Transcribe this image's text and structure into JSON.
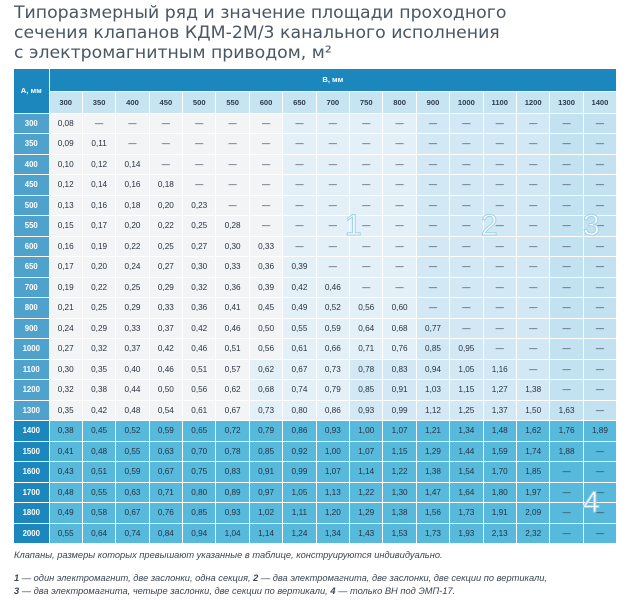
{
  "title_lines": [
    "Типоразмерный ряд и значение площади проходного",
    "сечения клапанов КДМ-2М/3 канального исполнения",
    "с электромагнитным приводом, м²"
  ],
  "table": {
    "corner_label": "А, мм",
    "columns_label": "В, мм",
    "columns": [
      "300",
      "350",
      "400",
      "450",
      "500",
      "550",
      "600",
      "650",
      "700",
      "750",
      "800",
      "900",
      "1000",
      "1100",
      "1200",
      "1300",
      "1400"
    ],
    "rows": [
      {
        "a": "300",
        "cells": [
          "0,08",
          "—",
          "—",
          "—",
          "—",
          "—",
          "—",
          "—",
          "—",
          "—",
          "—",
          "—",
          "—",
          "—",
          "—",
          "—",
          "—"
        ]
      },
      {
        "a": "350",
        "cells": [
          "0,09",
          "0,11",
          "—",
          "—",
          "—",
          "—",
          "—",
          "—",
          "—",
          "—",
          "—",
          "—",
          "—",
          "—",
          "—",
          "—",
          "—"
        ]
      },
      {
        "a": "400",
        "cells": [
          "0,10",
          "0,12",
          "0,14",
          "—",
          "—",
          "—",
          "—",
          "—",
          "—",
          "—",
          "—",
          "—",
          "—",
          "—",
          "—",
          "—",
          "—"
        ]
      },
      {
        "a": "450",
        "cells": [
          "0,12",
          "0,14",
          "0,16",
          "0,18",
          "—",
          "—",
          "—",
          "—",
          "—",
          "—",
          "—",
          "—",
          "—",
          "—",
          "—",
          "—",
          "—"
        ]
      },
      {
        "a": "500",
        "cells": [
          "0,13",
          "0,16",
          "0,18",
          "0,20",
          "0,23",
          "—",
          "—",
          "—",
          "—",
          "—",
          "—",
          "—",
          "—",
          "—",
          "—",
          "—",
          "—"
        ]
      },
      {
        "a": "550",
        "cells": [
          "0,15",
          "0,17",
          "0,20",
          "0,22",
          "0,25",
          "0,28",
          "—",
          "—",
          "—",
          "—",
          "—",
          "—",
          "—",
          "—",
          "—",
          "—",
          "—"
        ]
      },
      {
        "a": "600",
        "cells": [
          "0,16",
          "0,19",
          "0,22",
          "0,25",
          "0,27",
          "0,30",
          "0,33",
          "—",
          "—",
          "—",
          "—",
          "—",
          "—",
          "—",
          "—",
          "—",
          "—"
        ]
      },
      {
        "a": "650",
        "cells": [
          "0,17",
          "0,20",
          "0,24",
          "0,27",
          "0,30",
          "0,33",
          "0,36",
          "0,39",
          "—",
          "—",
          "—",
          "—",
          "—",
          "—",
          "—",
          "—",
          "—"
        ]
      },
      {
        "a": "700",
        "cells": [
          "0,19",
          "0,22",
          "0,25",
          "0,29",
          "0,32",
          "0,36",
          "0,39",
          "0,42",
          "0,46",
          "—",
          "—",
          "—",
          "—",
          "—",
          "—",
          "—",
          "—"
        ]
      },
      {
        "a": "800",
        "cells": [
          "0,21",
          "0,25",
          "0,29",
          "0,33",
          "0,36",
          "0,41",
          "0,45",
          "0,49",
          "0,52",
          "0,56",
          "0,60",
          "—",
          "—",
          "—",
          "—",
          "—",
          "—"
        ]
      },
      {
        "a": "900",
        "cells": [
          "0,24",
          "0,29",
          "0,33",
          "0,37",
          "0,42",
          "0,46",
          "0,50",
          "0,55",
          "0,59",
          "0,64",
          "0,68",
          "0,77",
          "—",
          "—",
          "—",
          "—",
          "—"
        ]
      },
      {
        "a": "1000",
        "cells": [
          "0,27",
          "0,32",
          "0,37",
          "0,42",
          "0,46",
          "0,51",
          "0,56",
          "0,61",
          "0,66",
          "0,71",
          "0,76",
          "0,85",
          "0,95",
          "—",
          "—",
          "—",
          "—"
        ]
      },
      {
        "a": "1100",
        "cells": [
          "0,30",
          "0,35",
          "0,40",
          "0,46",
          "0,51",
          "0,57",
          "0,62",
          "0,67",
          "0,73",
          "0,78",
          "0,83",
          "0,94",
          "1,05",
          "1,16",
          "—",
          "—",
          "—"
        ]
      },
      {
        "a": "1200",
        "cells": [
          "0,32",
          "0,38",
          "0,44",
          "0,50",
          "0,56",
          "0,62",
          "0,68",
          "0,74",
          "0,79",
          "0,85",
          "0,91",
          "1,03",
          "1,15",
          "1,27",
          "1,38",
          "—",
          "—"
        ]
      },
      {
        "a": "1300",
        "cells": [
          "0,35",
          "0,42",
          "0,48",
          "0,54",
          "0,61",
          "0,67",
          "0,73",
          "0,80",
          "0,86",
          "0,93",
          "0,99",
          "1,12",
          "1,25",
          "1,37",
          "1,50",
          "1,63",
          "—"
        ]
      },
      {
        "a": "1400",
        "cells": [
          "0,38",
          "0,45",
          "0,52",
          "0,59",
          "0,65",
          "0,72",
          "0,79",
          "0,86",
          "0,93",
          "1,00",
          "1,07",
          "1,21",
          "1,34",
          "1,48",
          "1,62",
          "1,76",
          "1,89"
        ]
      },
      {
        "a": "1500",
        "cells": [
          "0,41",
          "0,48",
          "0,55",
          "0,63",
          "0,70",
          "0,78",
          "0,85",
          "0,92",
          "1,00",
          "1,07",
          "1,15",
          "1,29",
          "1,44",
          "1,59",
          "1,74",
          "1,88",
          "—"
        ]
      },
      {
        "a": "1600",
        "cells": [
          "0,43",
          "0,51",
          "0,59",
          "0,67",
          "0,75",
          "0,83",
          "0,91",
          "0,99",
          "1,07",
          "1,14",
          "1,22",
          "1,38",
          "1,54",
          "1,70",
          "1,85",
          "—",
          "—"
        ]
      },
      {
        "a": "1700",
        "cells": [
          "0,48",
          "0,55",
          "0,63",
          "0,71",
          "0,80",
          "0,89",
          "0,97",
          "1,05",
          "1,13",
          "1,22",
          "1,30",
          "1,47",
          "1,64",
          "1,80",
          "1,97",
          "—",
          "—"
        ]
      },
      {
        "a": "1800",
        "cells": [
          "0,49",
          "0,58",
          "0,67",
          "0,76",
          "0,85",
          "0,93",
          "1,02",
          "1,11",
          "1,20",
          "1,29",
          "1,38",
          "1,56",
          "1,73",
          "1,91",
          "2,09",
          "—",
          "—"
        ]
      },
      {
        "a": "2000",
        "cells": [
          "0,55",
          "0,64",
          "0,74",
          "0,84",
          "0,94",
          "1,04",
          "1,14",
          "1,24",
          "1,34",
          "1,43",
          "1,53",
          "1,73",
          "1,93",
          "2,13",
          "2,32",
          "—",
          "—"
        ]
      }
    ]
  },
  "zone_labels": {
    "z1": "1",
    "z2": "2",
    "z3": "3",
    "z4": "4"
  },
  "notes": {
    "custom": "Клапаны, размеры которых превышают указанные в таблице, конструируются индивидуально.",
    "legend_line1_k1": "1",
    "legend_line1_t1": " — один электромагнит, две заслонки, одна секция, ",
    "legend_line1_k2": "2",
    "legend_line1_t2": " — два электромагнита, две заслонки, две секции по вертикали,",
    "legend_line2_k3": "3",
    "legend_line2_t3": " — два электромагнита, четыре заслонки, две секции по вертикали, ",
    "legend_line2_k4": "4",
    "legend_line2_t4": " — только ВН под ЭМП-17."
  },
  "colors": {
    "header_dark": "#1b87bd",
    "zone_dark": "#57b9dc",
    "title_text": "#4a5663"
  }
}
